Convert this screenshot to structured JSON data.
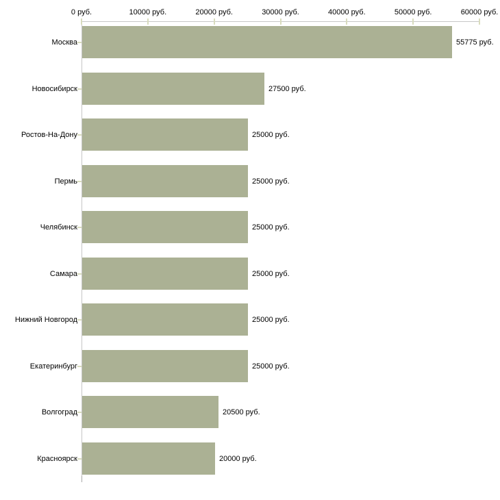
{
  "chart_data": {
    "type": "bar",
    "orientation": "horizontal",
    "title": "",
    "xlabel": "",
    "ylabel": "",
    "unit": "руб.",
    "categories": [
      "Москва",
      "Новосибирск",
      "Ростов-На-Дону",
      "Пермь",
      "Челябинск",
      "Самара",
      "Нижний Новгород",
      "Екатеринбург",
      "Волгоград",
      "Красноярск"
    ],
    "values": [
      55775,
      27500,
      25000,
      25000,
      25000,
      25000,
      25000,
      25000,
      20500,
      20000
    ],
    "value_labels": [
      "55775 руб.",
      "27500 руб.",
      "25000 руб.",
      "25000 руб.",
      "25000 руб.",
      "25000 руб.",
      "25000 руб.",
      "25000 руб.",
      "20500 руб.",
      "20000 руб."
    ],
    "x_ticks": [
      0,
      10000,
      20000,
      30000,
      40000,
      50000,
      60000
    ],
    "x_tick_labels": [
      "0 руб.",
      "10000 руб.",
      "20000 руб.",
      "30000 руб.",
      "40000 руб.",
      "50000 руб.",
      "60000 руб."
    ],
    "xlim": [
      0,
      60000
    ],
    "grid": false,
    "legend": false,
    "axis_position": "top",
    "colors": {
      "bar": "#abb194",
      "axis_line": "#c6c6c6",
      "tick": "#d9dcbe",
      "text": "#000000",
      "background": "#ffffff"
    }
  }
}
